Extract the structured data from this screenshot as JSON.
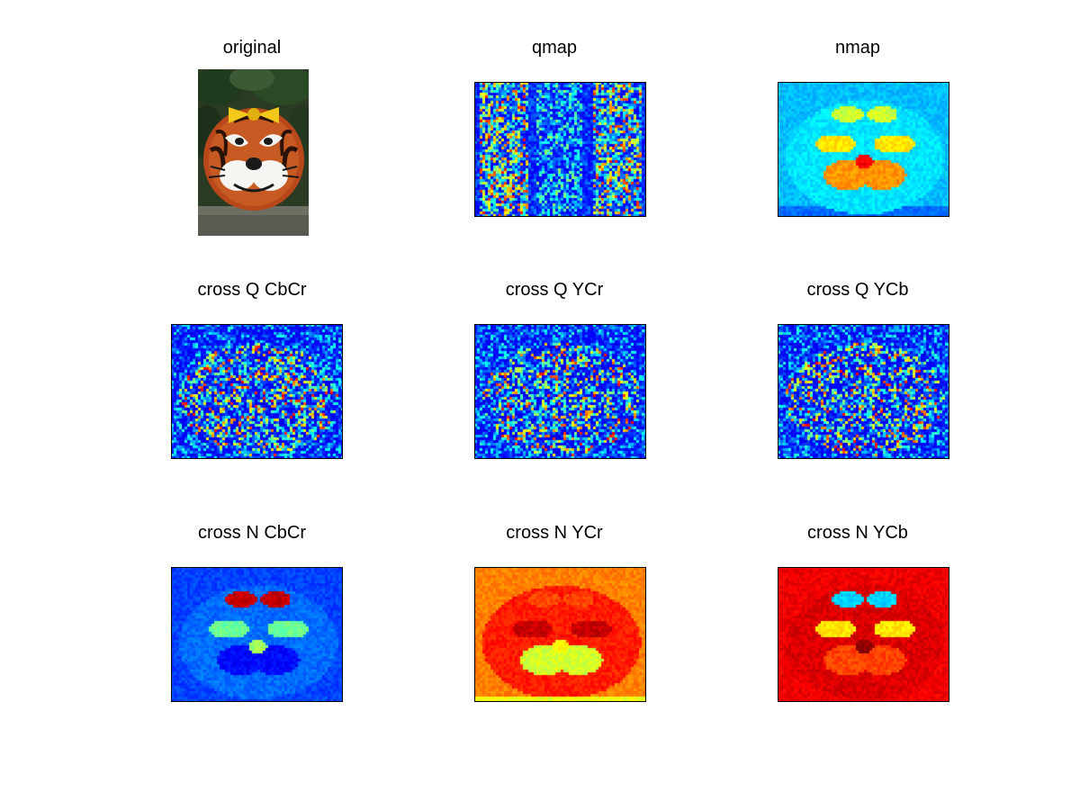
{
  "figure": {
    "panels": [
      {
        "id": "original",
        "title": "original",
        "kind": "photo"
      },
      {
        "id": "qmap",
        "title": "qmap",
        "kind": "noise",
        "scheme": "jet-cool"
      },
      {
        "id": "nmap",
        "title": "nmap",
        "kind": "face",
        "scheme": "nmap"
      },
      {
        "id": "cross-q-cbcr",
        "title": "cross Q CbCr",
        "kind": "noise",
        "scheme": "jet-cool"
      },
      {
        "id": "cross-q-ycr",
        "title": "cross Q YCr",
        "kind": "noise",
        "scheme": "jet-cool"
      },
      {
        "id": "cross-q-ycb",
        "title": "cross Q YCb",
        "kind": "noise",
        "scheme": "jet-cool"
      },
      {
        "id": "cross-n-cbcr",
        "title": "cross N CbCr",
        "kind": "face",
        "scheme": "n-cbcr"
      },
      {
        "id": "cross-n-ycr",
        "title": "cross N YCr",
        "kind": "face",
        "scheme": "n-ycr"
      },
      {
        "id": "cross-n-ycb",
        "title": "cross N YCb",
        "kind": "face",
        "scheme": "n-ycb"
      }
    ],
    "colors": {
      "jet_dark_blue": "#00008f",
      "jet_blue": "#0000ff",
      "jet_cyan": "#00ffff",
      "jet_yellow": "#ffff00",
      "jet_red": "#ff0000",
      "jet_dark_red": "#800000"
    }
  }
}
